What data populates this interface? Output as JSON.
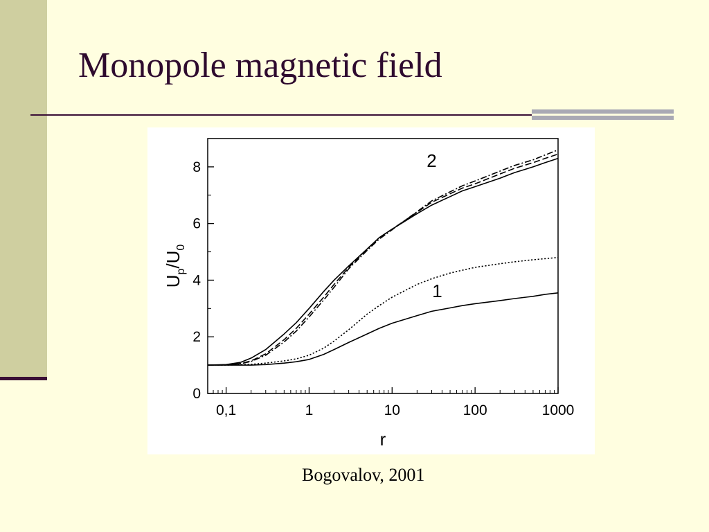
{
  "slide": {
    "title": "Monopole magnetic field",
    "caption": "Bogovalov, 2001",
    "colors": {
      "background": "#FFFEE0",
      "sidebar": "#CFCFA0",
      "accent": "#3A0F36",
      "title": "#2E0A2E"
    }
  },
  "chart_data": {
    "type": "line",
    "xlabel": "r",
    "ylabel": {
      "base": "U",
      "sub1": "p",
      "sep": "/U",
      "sub2": "0"
    },
    "x_scale": "log",
    "xlim": [
      0.06,
      1000
    ],
    "ylim": [
      0,
      9
    ],
    "xticks": [
      {
        "value": 0.1,
        "label": "0,1"
      },
      {
        "value": 1,
        "label": "1"
      },
      {
        "value": 10,
        "label": "10"
      },
      {
        "value": 100,
        "label": "100"
      },
      {
        "value": 1000,
        "label": "1000"
      }
    ],
    "yticks": [
      {
        "value": 0,
        "label": "0"
      },
      {
        "value": 2,
        "label": "2"
      },
      {
        "value": 4,
        "label": "4"
      },
      {
        "value": 6,
        "label": "6"
      },
      {
        "value": 8,
        "label": "8"
      }
    ],
    "grid": false,
    "annotations": [
      {
        "text": "2",
        "x": 30,
        "y": 8.0
      },
      {
        "text": "1",
        "x": 35,
        "y": 3.4
      }
    ],
    "series": [
      {
        "style": "solid",
        "x": [
          0.06,
          0.1,
          0.2,
          0.3,
          0.5,
          0.7,
          1,
          1.5,
          2,
          3,
          5,
          7,
          10,
          20,
          30,
          50,
          70,
          100,
          200,
          300,
          500,
          700,
          1000
        ],
        "y": [
          1.0,
          1.0,
          1.0,
          1.02,
          1.07,
          1.12,
          1.2,
          1.38,
          1.55,
          1.8,
          2.1,
          2.3,
          2.48,
          2.75,
          2.9,
          3.02,
          3.1,
          3.17,
          3.28,
          3.35,
          3.43,
          3.5,
          3.55
        ]
      },
      {
        "style": "dotted",
        "x": [
          0.06,
          0.1,
          0.2,
          0.3,
          0.5,
          0.7,
          1,
          1.5,
          2,
          3,
          5,
          7,
          10,
          20,
          30,
          50,
          70,
          100,
          200,
          300,
          500,
          700,
          1000
        ],
        "y": [
          1.0,
          1.0,
          1.03,
          1.07,
          1.15,
          1.22,
          1.35,
          1.6,
          1.85,
          2.25,
          2.8,
          3.1,
          3.4,
          3.85,
          4.05,
          4.25,
          4.35,
          4.45,
          4.58,
          4.65,
          4.72,
          4.76,
          4.8
        ]
      },
      {
        "style": "solid",
        "x": [
          0.06,
          0.1,
          0.15,
          0.2,
          0.3,
          0.5,
          0.7,
          1,
          1.5,
          2,
          3,
          5,
          7,
          10,
          20,
          30,
          50,
          70,
          100,
          200,
          300,
          500,
          700,
          1000
        ],
        "y": [
          1.0,
          1.02,
          1.1,
          1.25,
          1.55,
          2.1,
          2.5,
          3.0,
          3.6,
          4.0,
          4.5,
          5.1,
          5.5,
          5.8,
          6.35,
          6.65,
          6.95,
          7.15,
          7.3,
          7.6,
          7.8,
          8.0,
          8.15,
          8.3
        ]
      },
      {
        "style": "dashed",
        "x": [
          0.06,
          0.1,
          0.15,
          0.2,
          0.3,
          0.5,
          0.7,
          1,
          1.5,
          2,
          3,
          5,
          7,
          10,
          20,
          30,
          50,
          70,
          100,
          200,
          300,
          500,
          700,
          1000
        ],
        "y": [
          1.0,
          1.01,
          1.06,
          1.15,
          1.4,
          1.9,
          2.3,
          2.8,
          3.4,
          3.85,
          4.45,
          5.1,
          5.5,
          5.8,
          6.4,
          6.75,
          7.05,
          7.25,
          7.4,
          7.75,
          7.95,
          8.15,
          8.3,
          8.45
        ]
      },
      {
        "style": "dashdot",
        "x": [
          0.06,
          0.1,
          0.15,
          0.2,
          0.3,
          0.5,
          0.7,
          1,
          1.5,
          2,
          3,
          5,
          7,
          10,
          20,
          30,
          50,
          70,
          100,
          200,
          300,
          500,
          700,
          1000
        ],
        "y": [
          1.0,
          1.01,
          1.05,
          1.13,
          1.35,
          1.82,
          2.2,
          2.7,
          3.3,
          3.75,
          4.4,
          5.05,
          5.45,
          5.78,
          6.42,
          6.8,
          7.12,
          7.33,
          7.5,
          7.85,
          8.05,
          8.25,
          8.42,
          8.6
        ]
      }
    ]
  }
}
